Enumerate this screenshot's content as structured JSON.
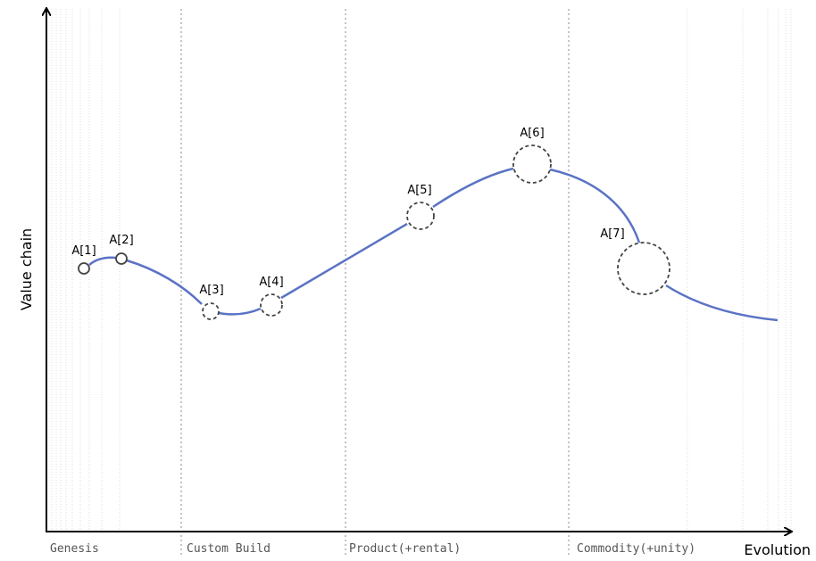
{
  "axes": {
    "y_label": "Value chain",
    "x_label": "Evolution"
  },
  "stages": [
    "Genesis",
    "Custom Build",
    "Product(+rental)",
    "Commodity(+unity)"
  ],
  "nodes": [
    {
      "label": "A[1]",
      "style": "solid"
    },
    {
      "label": "A[2]",
      "style": "solid"
    },
    {
      "label": "A[3]",
      "style": "dashed"
    },
    {
      "label": "A[4]",
      "style": "dashed"
    },
    {
      "label": "A[5]",
      "style": "dashed"
    },
    {
      "label": "A[6]",
      "style": "dashed"
    },
    {
      "label": "A[7]",
      "style": "dashed"
    }
  ],
  "colors": {
    "curve": "#5b73c4",
    "node_stroke": "#444444",
    "axis": "#000000"
  }
}
